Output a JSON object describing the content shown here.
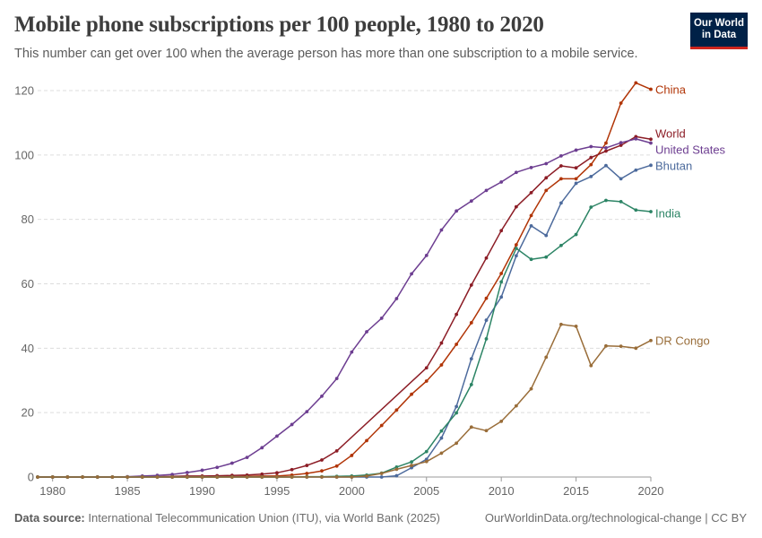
{
  "header": {
    "title": "Mobile phone subscriptions per 100 people, 1980 to 2020",
    "subtitle": "This number can get over 100 when the average person has more than one subscription to a mobile service."
  },
  "logo": {
    "line1": "Our World",
    "line2": "in Data",
    "bg": "#002147",
    "accent": "#ce261e"
  },
  "footer": {
    "source_label": "Data source:",
    "source_text": "International Telecommunication Union (ITU), via World Bank (2025)",
    "right_text": "OurWorldinData.org/technological-change | CC BY"
  },
  "chart_data": {
    "type": "line",
    "title": "Mobile phone subscriptions per 100 people, 1980 to 2020",
    "xlabel": "",
    "ylabel": "",
    "xlim": [
      1979,
      2020
    ],
    "ylim": [
      0,
      120
    ],
    "x_ticks": [
      1980,
      1985,
      1990,
      1995,
      2000,
      2005,
      2010,
      2015,
      2020
    ],
    "y_ticks": [
      0,
      20,
      40,
      60,
      80,
      100,
      120
    ],
    "grid": "horizontal dashed",
    "legend": "right (end labels)",
    "series": [
      {
        "name": "China",
        "color": "#b13507",
        "points": [
          [
            1979,
            0
          ],
          [
            1980,
            0
          ],
          [
            1981,
            0
          ],
          [
            1982,
            0
          ],
          [
            1983,
            0
          ],
          [
            1984,
            0
          ],
          [
            1985,
            0
          ],
          [
            1986,
            0
          ],
          [
            1987,
            0
          ],
          [
            1988,
            0
          ],
          [
            1989,
            0
          ],
          [
            1990,
            0
          ],
          [
            1991,
            0
          ],
          [
            1992,
            0.1
          ],
          [
            1993,
            0.2
          ],
          [
            1994,
            0.3
          ],
          [
            1995,
            0.3
          ],
          [
            1996,
            0.6
          ],
          [
            1997,
            1.1
          ],
          [
            1998,
            1.9
          ],
          [
            1999,
            3.4
          ],
          [
            2000,
            6.7
          ],
          [
            2001,
            11.3
          ],
          [
            2002,
            16.0
          ],
          [
            2003,
            20.8
          ],
          [
            2004,
            25.7
          ],
          [
            2005,
            29.8
          ],
          [
            2006,
            34.8
          ],
          [
            2007,
            41.2
          ],
          [
            2008,
            47.9
          ],
          [
            2009,
            55.5
          ],
          [
            2010,
            63.2
          ],
          [
            2011,
            72.1
          ],
          [
            2012,
            81.2
          ],
          [
            2013,
            89.0
          ],
          [
            2014,
            92.6
          ],
          [
            2015,
            92.6
          ],
          [
            2016,
            97.0
          ],
          [
            2017,
            103.7
          ],
          [
            2018,
            116.1
          ],
          [
            2019,
            122.4
          ],
          [
            2020,
            120.4
          ]
        ]
      },
      {
        "name": "World",
        "color": "#8c1d26",
        "points": [
          [
            1979,
            0
          ],
          [
            1980,
            0
          ],
          [
            1981,
            0
          ],
          [
            1982,
            0
          ],
          [
            1983,
            0
          ],
          [
            1984,
            0
          ],
          [
            1985,
            0
          ],
          [
            1986,
            0.1
          ],
          [
            1987,
            0.1
          ],
          [
            1988,
            0.2
          ],
          [
            1989,
            0.3
          ],
          [
            1990,
            0.3
          ],
          [
            1991,
            0.4
          ],
          [
            1992,
            0.5
          ],
          [
            1993,
            0.6
          ],
          [
            1994,
            0.9
          ],
          [
            1995,
            1.3
          ],
          [
            1996,
            2.3
          ],
          [
            1997,
            3.6
          ],
          [
            1998,
            5.3
          ],
          [
            1999,
            8.1
          ],
          [
            2005,
            33.9
          ],
          [
            2006,
            41.6
          ],
          [
            2007,
            50.5
          ],
          [
            2008,
            59.6
          ],
          [
            2009,
            68.0
          ],
          [
            2010,
            76.5
          ],
          [
            2011,
            83.9
          ],
          [
            2012,
            88.3
          ],
          [
            2013,
            92.9
          ],
          [
            2014,
            96.6
          ],
          [
            2015,
            96.0
          ],
          [
            2016,
            99.2
          ],
          [
            2017,
            101.2
          ],
          [
            2018,
            103.0
          ],
          [
            2019,
            105.7
          ],
          [
            2020,
            104.9
          ]
        ]
      },
      {
        "name": "United States",
        "color": "#6d3e91",
        "points": [
          [
            1979,
            0
          ],
          [
            1980,
            0
          ],
          [
            1981,
            0
          ],
          [
            1982,
            0
          ],
          [
            1983,
            0
          ],
          [
            1984,
            0
          ],
          [
            1985,
            0.1
          ],
          [
            1986,
            0.3
          ],
          [
            1987,
            0.5
          ],
          [
            1988,
            0.8
          ],
          [
            1989,
            1.4
          ],
          [
            1990,
            2.1
          ],
          [
            1991,
            3.0
          ],
          [
            1992,
            4.3
          ],
          [
            1993,
            6.1
          ],
          [
            1994,
            9.1
          ],
          [
            1995,
            12.7
          ],
          [
            1996,
            16.3
          ],
          [
            1997,
            20.3
          ],
          [
            1998,
            25.1
          ],
          [
            1999,
            30.6
          ],
          [
            2000,
            38.8
          ],
          [
            2001,
            45.1
          ],
          [
            2002,
            49.3
          ],
          [
            2003,
            55.4
          ],
          [
            2004,
            63.1
          ],
          [
            2005,
            68.8
          ],
          [
            2006,
            76.7
          ],
          [
            2007,
            82.6
          ],
          [
            2008,
            85.7
          ],
          [
            2009,
            89.0
          ],
          [
            2010,
            91.6
          ],
          [
            2011,
            94.6
          ],
          [
            2012,
            96.1
          ],
          [
            2013,
            97.3
          ],
          [
            2014,
            99.7
          ],
          [
            2015,
            101.5
          ],
          [
            2016,
            102.6
          ],
          [
            2017,
            102.2
          ],
          [
            2018,
            103.8
          ],
          [
            2019,
            105.0
          ],
          [
            2020,
            103.7
          ]
        ]
      },
      {
        "name": "Bhutan",
        "color": "#4c6a9c",
        "points": [
          [
            1979,
            0
          ],
          [
            1980,
            0
          ],
          [
            1981,
            0
          ],
          [
            1982,
            0
          ],
          [
            1983,
            0
          ],
          [
            1984,
            0
          ],
          [
            1985,
            0
          ],
          [
            1986,
            0
          ],
          [
            1987,
            0
          ],
          [
            1988,
            0
          ],
          [
            1989,
            0
          ],
          [
            1990,
            0
          ],
          [
            1991,
            0
          ],
          [
            1992,
            0
          ],
          [
            1993,
            0
          ],
          [
            1994,
            0
          ],
          [
            1995,
            0
          ],
          [
            1996,
            0
          ],
          [
            1997,
            0
          ],
          [
            1998,
            0
          ],
          [
            1999,
            0
          ],
          [
            2000,
            0
          ],
          [
            2001,
            0
          ],
          [
            2002,
            0
          ],
          [
            2003,
            0.4
          ],
          [
            2004,
            2.9
          ],
          [
            2005,
            5.5
          ],
          [
            2006,
            12.1
          ],
          [
            2007,
            21.9
          ],
          [
            2008,
            36.7
          ],
          [
            2009,
            48.7
          ],
          [
            2010,
            55.9
          ],
          [
            2011,
            68.7
          ],
          [
            2012,
            78.0
          ],
          [
            2013,
            75.0
          ],
          [
            2014,
            85.1
          ],
          [
            2015,
            91.2
          ],
          [
            2016,
            93.3
          ],
          [
            2017,
            96.7
          ],
          [
            2018,
            92.6
          ],
          [
            2019,
            95.3
          ],
          [
            2020,
            96.8
          ]
        ]
      },
      {
        "name": "India",
        "color": "#2c8465",
        "points": [
          [
            1979,
            0
          ],
          [
            1980,
            0
          ],
          [
            1981,
            0
          ],
          [
            1982,
            0
          ],
          [
            1983,
            0
          ],
          [
            1984,
            0
          ],
          [
            1985,
            0
          ],
          [
            1986,
            0
          ],
          [
            1987,
            0
          ],
          [
            1988,
            0
          ],
          [
            1989,
            0
          ],
          [
            1990,
            0
          ],
          [
            1991,
            0
          ],
          [
            1992,
            0
          ],
          [
            1993,
            0
          ],
          [
            1994,
            0
          ],
          [
            1995,
            0
          ],
          [
            1996,
            0
          ],
          [
            1997,
            0.1
          ],
          [
            1998,
            0.1
          ],
          [
            1999,
            0.2
          ],
          [
            2000,
            0.3
          ],
          [
            2001,
            0.6
          ],
          [
            2002,
            1.2
          ],
          [
            2003,
            3.1
          ],
          [
            2004,
            4.7
          ],
          [
            2005,
            7.9
          ],
          [
            2006,
            14.3
          ],
          [
            2007,
            19.9
          ],
          [
            2008,
            28.7
          ],
          [
            2009,
            42.9
          ],
          [
            2010,
            60.6
          ],
          [
            2011,
            71.0
          ],
          [
            2012,
            67.6
          ],
          [
            2013,
            68.3
          ],
          [
            2014,
            71.9
          ],
          [
            2015,
            75.3
          ],
          [
            2016,
            83.8
          ],
          [
            2017,
            85.9
          ],
          [
            2018,
            85.5
          ],
          [
            2019,
            82.9
          ],
          [
            2020,
            82.4
          ]
        ]
      },
      {
        "name": "DR Congo",
        "color": "#996d39",
        "points": [
          [
            1979,
            0
          ],
          [
            1980,
            0
          ],
          [
            1981,
            0
          ],
          [
            1982,
            0
          ],
          [
            1983,
            0
          ],
          [
            1984,
            0
          ],
          [
            1985,
            0
          ],
          [
            1986,
            0
          ],
          [
            1987,
            0
          ],
          [
            1988,
            0
          ],
          [
            1989,
            0
          ],
          [
            1990,
            0
          ],
          [
            1991,
            0
          ],
          [
            1992,
            0
          ],
          [
            1993,
            0
          ],
          [
            1994,
            0
          ],
          [
            1995,
            0
          ],
          [
            1996,
            0
          ],
          [
            1997,
            0
          ],
          [
            1998,
            0
          ],
          [
            1999,
            0
          ],
          [
            2000,
            0
          ],
          [
            2001,
            0.3
          ],
          [
            2002,
            1.1
          ],
          [
            2003,
            2.4
          ],
          [
            2004,
            3.6
          ],
          [
            2005,
            4.8
          ],
          [
            2006,
            7.4
          ],
          [
            2007,
            10.5
          ],
          [
            2008,
            15.5
          ],
          [
            2009,
            14.4
          ],
          [
            2010,
            17.3
          ],
          [
            2011,
            22.1
          ],
          [
            2012,
            27.4
          ],
          [
            2013,
            37.2
          ],
          [
            2014,
            47.4
          ],
          [
            2015,
            46.8
          ],
          [
            2016,
            34.6
          ],
          [
            2017,
            40.7
          ],
          [
            2018,
            40.6
          ],
          [
            2019,
            40.0
          ],
          [
            2020,
            42.4
          ]
        ]
      }
    ]
  }
}
